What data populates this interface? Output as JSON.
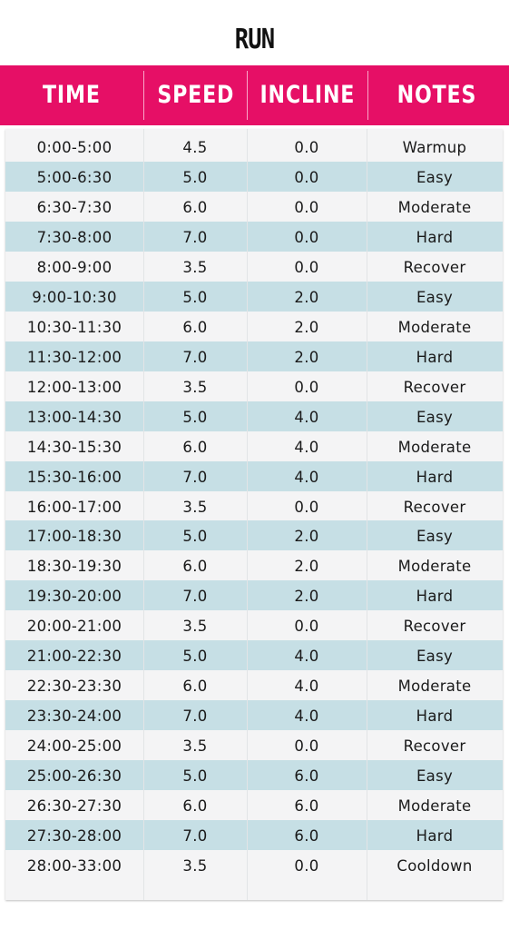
{
  "title": "RUN",
  "header": [
    "TIME",
    "SPEED",
    "INCLINE",
    "NOTES"
  ],
  "colors": {
    "header_bg": "#e60f66",
    "header_text": "#ffffff",
    "row_alt": "#c6dfe5",
    "row_base": "#f4f4f5"
  },
  "rows": [
    [
      "0:00-5:00",
      "4.5",
      "0.0",
      "Warmup"
    ],
    [
      "5:00-6:30",
      "5.0",
      "0.0",
      "Easy"
    ],
    [
      "6:30-7:30",
      "6.0",
      "0.0",
      "Moderate"
    ],
    [
      "7:30-8:00",
      "7.0",
      "0.0",
      "Hard"
    ],
    [
      "8:00-9:00",
      "3.5",
      "0.0",
      "Recover"
    ],
    [
      "9:00-10:30",
      "5.0",
      "2.0",
      "Easy"
    ],
    [
      "10:30-11:30",
      "6.0",
      "2.0",
      "Moderate"
    ],
    [
      "11:30-12:00",
      "7.0",
      "2.0",
      "Hard"
    ],
    [
      "12:00-13:00",
      "3.5",
      "0.0",
      "Recover"
    ],
    [
      "13:00-14:30",
      "5.0",
      "4.0",
      "Easy"
    ],
    [
      "14:30-15:30",
      "6.0",
      "4.0",
      "Moderate"
    ],
    [
      "15:30-16:00",
      "7.0",
      "4.0",
      "Hard"
    ],
    [
      "16:00-17:00",
      "3.5",
      "0.0",
      "Recover"
    ],
    [
      "17:00-18:30",
      "5.0",
      "2.0",
      "Easy"
    ],
    [
      "18:30-19:30",
      "6.0",
      "2.0",
      "Moderate"
    ],
    [
      "19:30-20:00",
      "7.0",
      "2.0",
      "Hard"
    ],
    [
      "20:00-21:00",
      "3.5",
      "0.0",
      "Recover"
    ],
    [
      "21:00-22:30",
      "5.0",
      "4.0",
      "Easy"
    ],
    [
      "22:30-23:30",
      "6.0",
      "4.0",
      "Moderate"
    ],
    [
      "23:30-24:00",
      "7.0",
      "4.0",
      "Hard"
    ],
    [
      "24:00-25:00",
      "3.5",
      "0.0",
      "Recover"
    ],
    [
      "25:00-26:30",
      "5.0",
      "6.0",
      "Easy"
    ],
    [
      "26:30-27:30",
      "6.0",
      "6.0",
      "Moderate"
    ],
    [
      "27:30-28:00",
      "7.0",
      "6.0",
      "Hard"
    ],
    [
      "28:00-33:00",
      "3.5",
      "0.0",
      "Cooldown"
    ]
  ]
}
